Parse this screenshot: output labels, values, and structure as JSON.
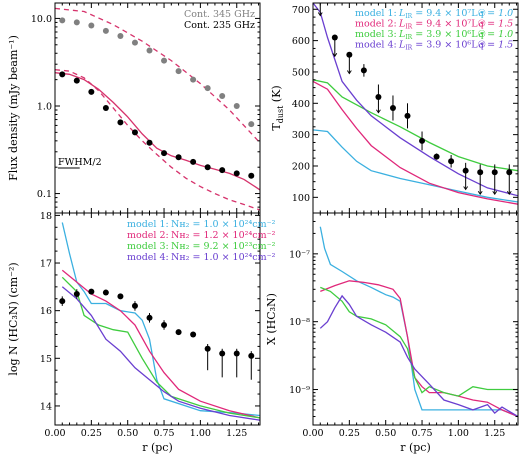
{
  "chart_data": [
    {
      "id": "A",
      "type": "scatter",
      "ylabel": "Flux density (mJy beam⁻¹)",
      "yscale": "log",
      "ylim": [
        0.06,
        15
      ],
      "xlim": [
        0,
        1.41
      ],
      "yticks": [
        {
          "v": 0.1,
          "label": "0.1"
        },
        {
          "v": 1,
          "label": "1.0"
        },
        {
          "v": 10,
          "label": "10.0"
        }
      ],
      "annotation": "FWHM/2",
      "legend": [
        {
          "name": "Cont. 345 GHz",
          "color": "#808080"
        },
        {
          "name": "Cont. 235 GHz",
          "color": "#000000"
        }
      ],
      "series": [
        {
          "name": "Cont. 345 GHz",
          "kind": "points",
          "color": "#808080",
          "x": [
            0.05,
            0.15,
            0.25,
            0.35,
            0.45,
            0.55,
            0.65,
            0.75,
            0.85,
            0.95,
            1.05,
            1.15,
            1.25,
            1.35
          ],
          "y": [
            9.5,
            9.0,
            8.3,
            7.2,
            6.3,
            5.3,
            4.3,
            3.3,
            2.5,
            2.0,
            1.6,
            1.3,
            1.0,
            0.62
          ]
        },
        {
          "name": "Cont. 235 GHz",
          "kind": "points",
          "color": "#000000",
          "x": [
            0.05,
            0.15,
            0.25,
            0.35,
            0.45,
            0.55,
            0.65,
            0.75,
            0.85,
            0.95,
            1.05,
            1.15,
            1.25,
            1.35
          ],
          "y": [
            2.3,
            1.95,
            1.45,
            0.95,
            0.65,
            0.5,
            0.38,
            0.29,
            0.26,
            0.23,
            0.2,
            0.185,
            0.17,
            0.16
          ]
        },
        {
          "kind": "line",
          "style": "dashed",
          "color": "#d6336c",
          "x": [
            0,
            0.2,
            0.4,
            0.6,
            0.8,
            1.0,
            1.2,
            1.41
          ],
          "y": [
            13,
            12,
            8.5,
            5.5,
            3.3,
            1.8,
            0.9,
            0.38
          ]
        },
        {
          "kind": "line",
          "style": "dashed",
          "color": "#d6336c",
          "x": [
            0,
            0.1,
            0.2,
            0.3,
            0.4,
            0.5,
            0.6,
            0.7,
            0.8,
            0.9,
            1.0,
            1.1,
            1.2,
            1.3,
            1.41
          ],
          "y": [
            2.6,
            2.5,
            2.1,
            1.5,
            0.95,
            0.6,
            0.4,
            0.28,
            0.2,
            0.15,
            0.12,
            0.1,
            0.085,
            0.075,
            0.065
          ]
        },
        {
          "kind": "line",
          "style": "solid",
          "color": "#d6336c",
          "x": [
            0,
            0.1,
            0.2,
            0.3,
            0.4,
            0.5,
            0.6,
            0.7,
            0.8,
            0.9,
            1.0,
            1.1,
            1.2,
            1.3,
            1.41
          ],
          "y": [
            2.4,
            2.3,
            2.0,
            1.55,
            1.1,
            0.75,
            0.48,
            0.33,
            0.27,
            0.24,
            0.21,
            0.19,
            0.17,
            0.145,
            0.11
          ]
        }
      ]
    },
    {
      "id": "B",
      "type": "line",
      "ylabel": "T",
      "ylabel_sub": "dust",
      "ylabel_unit": " (K)",
      "ylim": [
        50,
        720
      ],
      "xlim": [
        0,
        1.41
      ],
      "yticks": [
        100,
        200,
        300,
        400,
        500,
        600,
        700
      ],
      "legend": [
        {
          "name": "model 1:",
          "lum": "9.4 × 10⁷L☉",
          "q": "q = 1.0",
          "color": "#3bb0e0"
        },
        {
          "name": "model 2:",
          "lum": "9.4 × 10⁷L☉",
          "q": "q = 1.5",
          "color": "#e0287a"
        },
        {
          "name": "model 3:",
          "lum": "3.9 × 10⁶L☉",
          "q": "q = 1.0",
          "color": "#3fcc3f"
        },
        {
          "name": "model 4:",
          "lum": "3.9 × 10⁶L☉",
          "q": "q = 1.5",
          "color": "#6a3fd0"
        }
      ],
      "data_points": {
        "x": [
          0.05,
          0.15,
          0.25,
          0.35,
          0.45,
          0.55,
          0.65,
          0.75,
          0.85,
          0.95,
          1.05,
          1.15,
          1.25,
          1.35
        ],
        "y": [
          750,
          610,
          555,
          505,
          420,
          385,
          360,
          280,
          230,
          215,
          185,
          180,
          180,
          180
        ],
        "err_low": [
          70,
          60,
          60,
          20,
          50,
          40,
          40,
          30,
          10,
          20,
          60,
          70,
          70,
          70
        ],
        "err_high": [
          20,
          0,
          0,
          20,
          40,
          40,
          40,
          30,
          10,
          20,
          25,
          25,
          25,
          25
        ]
      },
      "series": [
        {
          "name": "model 1",
          "color": "#3bb0e0",
          "x": [
            0,
            0.1,
            0.2,
            0.3,
            0.4,
            0.6,
            0.8,
            1.0,
            1.2,
            1.41
          ],
          "y": [
            315,
            310,
            260,
            215,
            185,
            160,
            140,
            120,
            100,
            85
          ]
        },
        {
          "name": "model 2",
          "color": "#e0287a",
          "x": [
            0,
            0.1,
            0.2,
            0.3,
            0.4,
            0.6,
            0.8,
            1.0,
            1.2,
            1.41
          ],
          "y": [
            470,
            445,
            380,
            320,
            265,
            195,
            145,
            115,
            95,
            78
          ]
        },
        {
          "name": "model 3",
          "color": "#3fcc3f",
          "x": [
            0,
            0.1,
            0.2,
            0.4,
            0.6,
            0.8,
            1.0,
            1.2,
            1.41
          ],
          "y": [
            475,
            465,
            420,
            370,
            325,
            275,
            230,
            200,
            185
          ]
        },
        {
          "name": "model 4",
          "color": "#6a3fd0",
          "x": [
            0,
            0.05,
            0.1,
            0.2,
            0.3,
            0.4,
            0.6,
            0.8,
            1.0,
            1.2,
            1.41
          ],
          "y": [
            720,
            690,
            610,
            470,
            410,
            360,
            290,
            230,
            175,
            130,
            105
          ]
        }
      ]
    },
    {
      "id": "C",
      "type": "line",
      "ylabel": "log N (HC₃N) (cm⁻²)",
      "ylim": [
        13.6,
        18.05
      ],
      "xlim": [
        0,
        1.41
      ],
      "xlabel": "r (pc)",
      "xticks": [
        0,
        0.25,
        0.5,
        0.75,
        1.0,
        1.25
      ],
      "xticklabels": [
        "0.00",
        "0.25",
        "0.50",
        "0.75",
        "1.00",
        "1.25"
      ],
      "yticks": [
        14,
        15,
        16,
        17,
        18
      ],
      "legend": [
        {
          "name": "model 1:",
          "nh2": "Nʜ₂ = 1.0 × 10²⁴cm⁻²",
          "color": "#3bb0e0"
        },
        {
          "name": "model 2:",
          "nh2": "Nʜ₂ = 1.2 × 10²⁴cm⁻²",
          "color": "#e0287a"
        },
        {
          "name": "model 3:",
          "nh2": "Nʜ₂ = 9.2 × 10²³cm⁻²",
          "color": "#3fcc3f"
        },
        {
          "name": "model 4:",
          "nh2": "Nʜ₂ = 1.0 × 10²⁴cm⁻²",
          "color": "#6a3fd0"
        }
      ],
      "data_points": {
        "x": [
          0.05,
          0.15,
          0.25,
          0.35,
          0.45,
          0.55,
          0.65,
          0.75,
          0.85,
          0.95,
          1.05,
          1.15,
          1.25,
          1.35
        ],
        "y": [
          16.2,
          16.35,
          16.4,
          16.38,
          16.3,
          16.1,
          15.85,
          15.7,
          15.55,
          15.5,
          15.2,
          15.1,
          15.1,
          15.05
        ],
        "err_low": [
          0.1,
          0.1,
          0.05,
          0.05,
          0.05,
          0.1,
          0.1,
          0.1,
          0.05,
          0.05,
          0.45,
          0.5,
          0.5,
          0.5
        ],
        "err_high": [
          0.1,
          0.1,
          0.05,
          0.05,
          0.05,
          0.1,
          0.1,
          0.1,
          0.05,
          0.05,
          0.1,
          0.1,
          0.1,
          0.1
        ]
      },
      "series": [
        {
          "name": "model 1",
          "color": "#3bb0e0",
          "x": [
            0.05,
            0.1,
            0.15,
            0.2,
            0.25,
            0.35,
            0.45,
            0.55,
            0.6,
            0.65,
            0.7,
            0.75,
            1.0,
            1.25,
            1.41
          ],
          "y": [
            17.85,
            17.2,
            16.6,
            16.4,
            16.15,
            16.15,
            16.0,
            15.95,
            15.8,
            15.4,
            14.55,
            14.15,
            13.9,
            13.85,
            13.8
          ]
        },
        {
          "name": "model 2",
          "color": "#e0287a",
          "x": [
            0.05,
            0.15,
            0.25,
            0.35,
            0.45,
            0.55,
            0.65,
            0.75,
            0.85,
            1.0,
            1.2,
            1.41
          ],
          "y": [
            16.85,
            16.6,
            16.35,
            16.2,
            16.0,
            15.7,
            15.15,
            14.7,
            14.35,
            14.1,
            13.9,
            13.75
          ]
        },
        {
          "name": "model 3",
          "color": "#3fcc3f",
          "x": [
            0.05,
            0.15,
            0.2,
            0.3,
            0.4,
            0.5,
            0.6,
            0.7,
            0.8,
            1.0,
            1.2,
            1.41
          ],
          "y": [
            16.7,
            16.4,
            15.9,
            15.7,
            15.6,
            15.55,
            15.0,
            14.5,
            14.2,
            14.0,
            13.85,
            13.75
          ]
        },
        {
          "name": "model 4",
          "color": "#6a3fd0",
          "x": [
            0.05,
            0.15,
            0.25,
            0.35,
            0.45,
            0.55,
            0.65,
            0.75,
            0.85,
            1.0,
            1.2,
            1.41
          ],
          "y": [
            16.5,
            16.25,
            15.9,
            15.4,
            15.15,
            14.8,
            14.55,
            14.3,
            14.1,
            13.95,
            13.8,
            13.7
          ]
        }
      ]
    },
    {
      "id": "D",
      "type": "line",
      "ylabel": "X (HC₃N)",
      "yscale": "log",
      "ylim": [
        3e-10,
        4e-07
      ],
      "xlim": [
        0,
        1.41
      ],
      "xlabel": "r (pc)",
      "xticks": [
        0,
        0.25,
        0.5,
        0.75,
        1.0,
        1.25
      ],
      "xticklabels": [
        "0.00",
        "0.25",
        "0.50",
        "0.75",
        "1.00",
        "1.25"
      ],
      "yticks": [
        {
          "v": 1e-09,
          "label": "10⁻⁹"
        },
        {
          "v": 1e-08,
          "label": "10⁻⁸"
        },
        {
          "v": 1e-07,
          "label": "10⁻⁷"
        }
      ],
      "series": [
        {
          "name": "model 1",
          "color": "#3bb0e0",
          "x": [
            0.05,
            0.08,
            0.12,
            0.2,
            0.3,
            0.4,
            0.5,
            0.55,
            0.6,
            0.65,
            0.7,
            0.75,
            1.0,
            1.2,
            1.3,
            1.41
          ],
          "y": [
            2.5e-07,
            1.2e-07,
            7e-08,
            5.5e-08,
            4e-08,
            3.2e-08,
            2.5e-08,
            2.3e-08,
            2e-08,
            6e-09,
            1e-09,
            5e-10,
            5e-10,
            5e-10,
            5e-10,
            4e-10
          ]
        },
        {
          "name": "model 2",
          "color": "#e0287a",
          "x": [
            0.05,
            0.15,
            0.25,
            0.35,
            0.45,
            0.55,
            0.6,
            0.65,
            0.7,
            0.75,
            0.8,
            0.9,
            1.0,
            1.1,
            1.2,
            1.3,
            1.41
          ],
          "y": [
            2.8e-08,
            3.4e-08,
            4e-08,
            3.8e-08,
            3.5e-08,
            3e-08,
            2.2e-08,
            6e-09,
            1.5e-09,
            1.1e-09,
            9e-10,
            9e-10,
            8e-10,
            7e-10,
            6.5e-10,
            5e-10,
            4e-10
          ]
        },
        {
          "name": "model 3",
          "color": "#3fcc3f",
          "x": [
            0.05,
            0.12,
            0.2,
            0.25,
            0.3,
            0.4,
            0.5,
            0.6,
            0.65,
            0.7,
            0.75,
            0.8,
            0.9,
            1.0,
            1.1,
            1.2,
            1.41
          ],
          "y": [
            3.2e-08,
            2.8e-08,
            2e-08,
            1.4e-08,
            1.2e-08,
            1.1e-08,
            9e-09,
            6e-09,
            4e-09,
            1.5e-09,
            9e-10,
            1.1e-09,
            9e-10,
            8e-10,
            1.1e-09,
            1e-09,
            1e-09
          ]
        },
        {
          "name": "model 4",
          "color": "#6a3fd0",
          "x": [
            0.05,
            0.1,
            0.15,
            0.2,
            0.25,
            0.3,
            0.4,
            0.5,
            0.6,
            0.65,
            0.7,
            0.8,
            0.9,
            1.0,
            1.1,
            1.2,
            1.25,
            1.3,
            1.41
          ],
          "y": [
            8e-09,
            1e-08,
            1.6e-08,
            2.4e-08,
            1.8e-08,
            1.2e-08,
            9e-09,
            7e-09,
            5e-09,
            3e-09,
            2e-09,
            1.2e-09,
            7e-10,
            6e-10,
            5e-10,
            6e-10,
            4.5e-10,
            5.5e-10,
            4e-10
          ]
        }
      ]
    }
  ]
}
